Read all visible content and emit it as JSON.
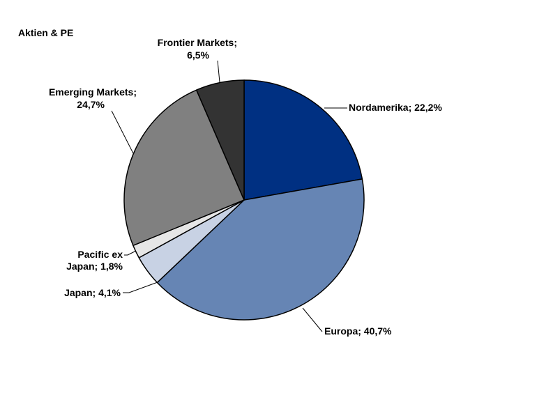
{
  "chart_data": {
    "type": "pie",
    "title": "Aktien & PE",
    "slices": [
      {
        "label": "Nordamerika; 22,2%",
        "value": 22.2,
        "color": "#003082"
      },
      {
        "label": "Europa; 40,7%",
        "value": 40.7,
        "color": "#6685b4"
      },
      {
        "label": "Japan; 4,1%",
        "value": 4.1,
        "color": "#c8d2e4"
      },
      {
        "label": [
          "Pacific ex",
          "Japan; 1,8%"
        ],
        "value": 1.8,
        "color": "#e6e6e6"
      },
      {
        "label": [
          "Emerging Markets;",
          "24,7%"
        ],
        "value": 24.7,
        "color": "#808080"
      },
      {
        "label": [
          "Frontier Markets;",
          "6,5%"
        ],
        "value": 6.5,
        "color": "#333333"
      }
    ]
  }
}
